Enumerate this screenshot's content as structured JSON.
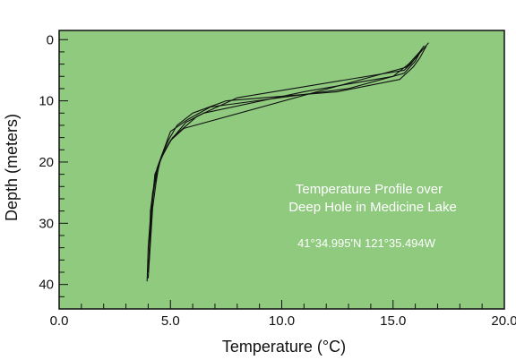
{
  "chart_data": {
    "type": "line",
    "xlabel": "Temperature (°C)",
    "ylabel": "Depth (meters)",
    "xlim": [
      0,
      20
    ],
    "ylim": [
      44,
      -1.5
    ],
    "y_inverted": true,
    "x_ticks": [
      {
        "value": 0,
        "label": "0.0"
      },
      {
        "value": 5,
        "label": "5.0"
      },
      {
        "value": 10,
        "label": "10.0"
      },
      {
        "value": 15,
        "label": "15.0"
      },
      {
        "value": 20,
        "label": "20.0"
      }
    ],
    "y_ticks": [
      {
        "value": 0,
        "label": "0"
      },
      {
        "value": 10,
        "label": "10"
      },
      {
        "value": 20,
        "label": "20"
      },
      {
        "value": 30,
        "label": "30"
      },
      {
        "value": 40,
        "label": "40"
      }
    ],
    "x_minor_step": 1,
    "y_minor_step": 2,
    "grid": false,
    "background_color": "#8fca7f",
    "line_color": "#111111",
    "annotations": {
      "title_line1": "Temperature Profile over",
      "title_line2": "Deep Hole in Medicine Lake",
      "coordinates": "41°34.995'N 121°35.494W"
    },
    "series": [
      {
        "x": [
          16.5,
          16.2,
          15.9,
          15.3,
          12.5,
          7.5,
          6.0,
          5.3,
          4.9,
          4.6,
          4.4,
          4.2,
          4.1,
          4.0,
          3.95
        ],
        "y": [
          1.0,
          3.0,
          4.5,
          6.5,
          8.5,
          10.0,
          12.0,
          14.0,
          16.5,
          19.0,
          22.0,
          25.0,
          29.0,
          34.0,
          39.5
        ]
      },
      {
        "x": [
          16.3,
          16.0,
          15.5,
          13.0,
          6.8,
          5.8,
          5.0,
          4.8,
          4.4,
          4.2,
          4.1,
          4.0
        ],
        "y": [
          1.5,
          3.5,
          5.5,
          8.0,
          11.0,
          13.0,
          15.0,
          17.0,
          21.0,
          26.0,
          31.0,
          38.0
        ]
      },
      {
        "x": [
          16.2,
          15.7,
          15.0,
          11.0,
          6.5,
          5.7,
          5.0,
          4.6,
          4.3,
          4.1,
          4.05
        ],
        "y": [
          2.0,
          4.0,
          6.0,
          8.5,
          12.0,
          13.5,
          16.5,
          19.0,
          22.5,
          28.0,
          36.0
        ]
      },
      {
        "x": [
          16.4,
          15.8,
          15.5,
          8.0,
          6.2,
          5.1,
          4.7,
          4.3,
          4.2,
          4.05
        ],
        "y": [
          1.0,
          4.0,
          5.0,
          9.5,
          12.5,
          16.0,
          18.5,
          22.0,
          26.0,
          35.0
        ]
      },
      {
        "x": [
          16.6,
          15.9,
          15.6,
          5.6,
          5.0,
          4.5,
          4.35,
          4.2,
          4.0
        ],
        "y": [
          0.5,
          3.5,
          4.5,
          14.5,
          16.5,
          20.0,
          23.5,
          27.5,
          39.0
        ]
      }
    ]
  }
}
